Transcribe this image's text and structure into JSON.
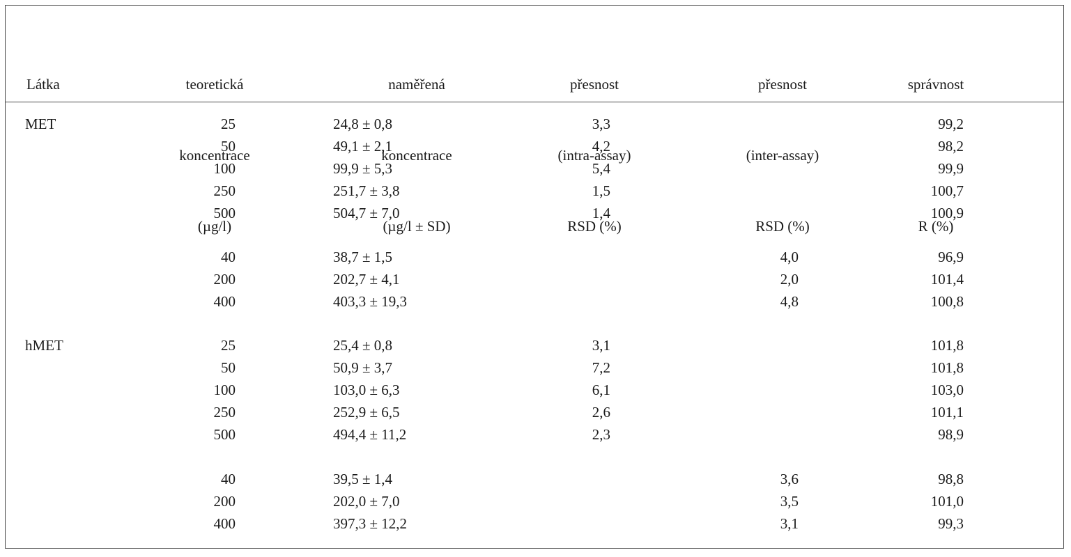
{
  "table": {
    "headers": {
      "substance": [
        "Látka"
      ],
      "theoretical": [
        "teoretická",
        "koncentrace",
        "(µg/l)"
      ],
      "measured": [
        "naměřená",
        "koncentrace",
        "(µg/l ± SD)"
      ],
      "intra": [
        "přesnost",
        "(intra-assay)",
        "RSD (%)"
      ],
      "inter": [
        "přesnost",
        "(inter-assay)",
        "RSD (%)"
      ],
      "recovery": [
        "správnost",
        "",
        "R (%)"
      ]
    },
    "rows": [
      {
        "substance": "MET",
        "theoretical": "25",
        "measured": "24,8 ± 0,8",
        "intra": "3,3",
        "inter": "",
        "recovery": "99,2"
      },
      {
        "substance": "",
        "theoretical": "50",
        "measured": "49,1 ± 2,1",
        "intra": "4,2",
        "inter": "",
        "recovery": "98,2"
      },
      {
        "substance": "",
        "theoretical": "100",
        "measured": "99,9 ± 5,3",
        "intra": "5,4",
        "inter": "",
        "recovery": "99,9"
      },
      {
        "substance": "",
        "theoretical": "250",
        "measured": "251,7 ± 3,8",
        "intra": "1,5",
        "inter": "",
        "recovery": "100,7"
      },
      {
        "substance": "",
        "theoretical": "500",
        "measured": "504,7 ± 7,0",
        "intra": "1,4",
        "inter": "",
        "recovery": "100,9"
      },
      {
        "substance": "",
        "theoretical": "40",
        "measured": "38,7 ± 1,5",
        "intra": "",
        "inter": "4,0",
        "recovery": "96,9"
      },
      {
        "substance": "",
        "theoretical": "200",
        "measured": "202,7 ± 4,1",
        "intra": "",
        "inter": "2,0",
        "recovery": "101,4"
      },
      {
        "substance": "",
        "theoretical": "400",
        "measured": "403,3 ± 19,3",
        "intra": "",
        "inter": "4,8",
        "recovery": "100,8"
      },
      {
        "substance": "hMET",
        "theoretical": "25",
        "measured": "25,4 ± 0,8",
        "intra": "3,1",
        "inter": "",
        "recovery": "101,8"
      },
      {
        "substance": "",
        "theoretical": "50",
        "measured": "50,9 ± 3,7",
        "intra": "7,2",
        "inter": "",
        "recovery": "101,8"
      },
      {
        "substance": "",
        "theoretical": "100",
        "measured": "103,0 ± 6,3",
        "intra": "6,1",
        "inter": "",
        "recovery": "103,0"
      },
      {
        "substance": "",
        "theoretical": "250",
        "measured": "252,9 ± 6,5",
        "intra": "2,6",
        "inter": "",
        "recovery": "101,1"
      },
      {
        "substance": "",
        "theoretical": "500",
        "measured": "494,4 ± 11,2",
        "intra": "2,3",
        "inter": "",
        "recovery": "98,9"
      },
      {
        "substance": "",
        "theoretical": "40",
        "measured": "39,5 ± 1,4",
        "intra": "",
        "inter": "3,6",
        "recovery": "98,8"
      },
      {
        "substance": "",
        "theoretical": "200",
        "measured": "202,0 ± 7,0",
        "intra": "",
        "inter": "3,5",
        "recovery": "101,0"
      },
      {
        "substance": "",
        "theoretical": "400",
        "measured": "397,3 ± 12,2",
        "intra": "",
        "inter": "3,1",
        "recovery": "99,3"
      }
    ]
  }
}
